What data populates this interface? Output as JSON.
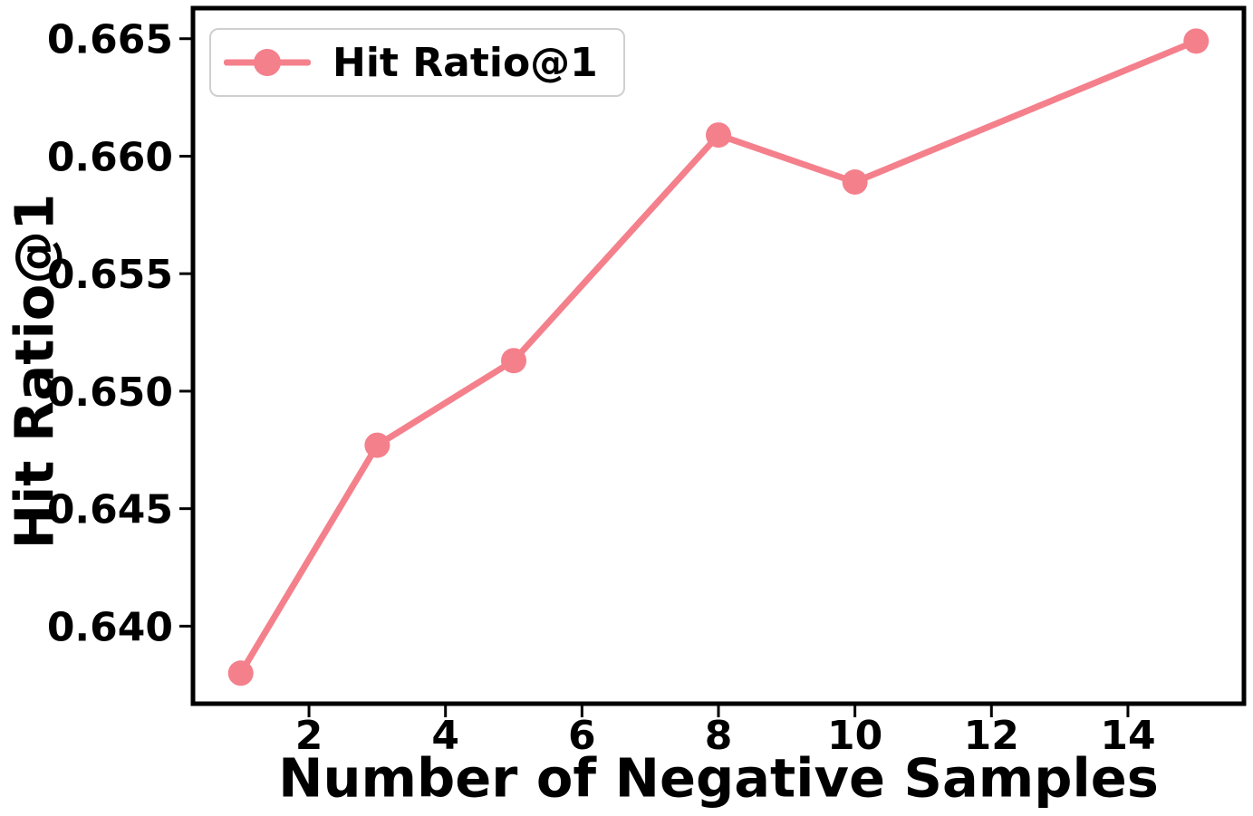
{
  "colors": {
    "accent": "#F4808C",
    "axis": "#000000",
    "background": "#ffffff",
    "legend_border": "#cfcfcf"
  },
  "chart_data": {
    "type": "line",
    "title": "",
    "xlabel": "Number of Negative Samples",
    "ylabel": "Hit Ratio@1",
    "x": [
      1,
      3,
      5,
      8,
      10,
      15
    ],
    "series": [
      {
        "name": "Hit Ratio@1",
        "values": [
          0.638,
          0.6477,
          0.6513,
          0.6609,
          0.6589,
          0.6649
        ],
        "color": "#F4808C",
        "marker": "circle",
        "line_width": 7,
        "marker_radius": 14
      }
    ],
    "xticks": [
      2,
      4,
      6,
      8,
      10,
      12,
      14
    ],
    "xtick_labels": [
      "2",
      "4",
      "6",
      "8",
      "10",
      "12",
      "14"
    ],
    "yticks": [
      0.64,
      0.645,
      0.65,
      0.655,
      0.66,
      0.665
    ],
    "ytick_labels": [
      "0.640",
      "0.645",
      "0.650",
      "0.655",
      "0.660",
      "0.665"
    ],
    "xlim": [
      0.3,
      15.7
    ],
    "ylim": [
      0.6367,
      0.6663
    ],
    "grid": false,
    "legend_position": "upper left",
    "legend": [
      "Hit Ratio@1"
    ]
  }
}
